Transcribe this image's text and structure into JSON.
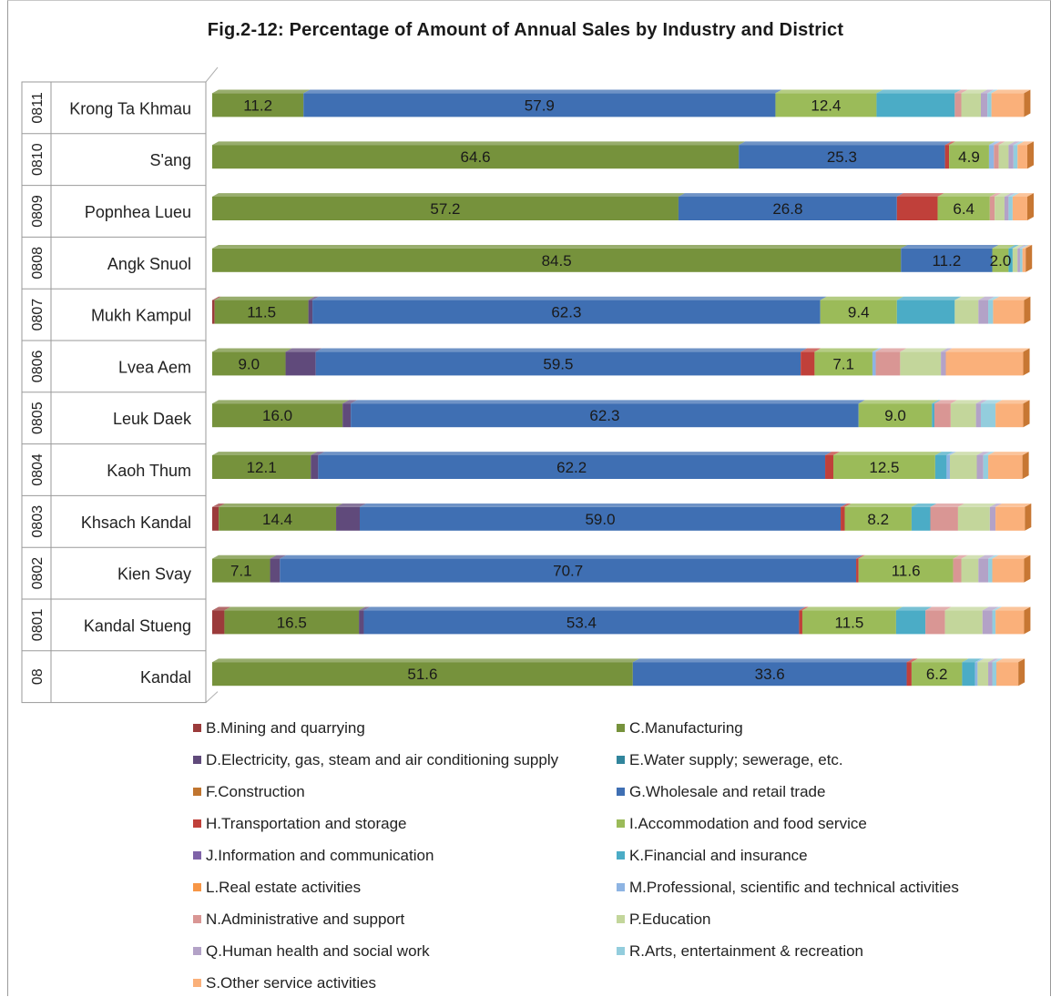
{
  "chart_data": {
    "type": "bar",
    "orientation": "horizontal",
    "stacked": true,
    "title": "Fig.2-12: Percentage of Amount of Annual Sales by Industry and District",
    "xlim": [
      0,
      100
    ],
    "legend_position": "bottom",
    "categories": [
      {
        "code": "0811",
        "name": "Krong Ta Khmau"
      },
      {
        "code": "0810",
        "name": "S'ang"
      },
      {
        "code": "0809",
        "name": "Popnhea Lueu"
      },
      {
        "code": "0808",
        "name": "Angk Snuol"
      },
      {
        "code": "0807",
        "name": "Mukh Kampul"
      },
      {
        "code": "0806",
        "name": "Lvea Aem"
      },
      {
        "code": "0805",
        "name": "Leuk Daek"
      },
      {
        "code": "0804",
        "name": "Kaoh Thum"
      },
      {
        "code": "0803",
        "name": "Khsach Kandal"
      },
      {
        "code": "0802",
        "name": "Kien Svay"
      },
      {
        "code": "0801",
        "name": "Kandal Stueng"
      },
      {
        "code": "08",
        "name": "Kandal"
      }
    ],
    "label_series": [
      "C.Manufacturing",
      "G.Wholesale and retail trade",
      "I.Accommodation and food service"
    ],
    "series": [
      {
        "name": "B.Mining and quarrying",
        "color": "#9b3b3b",
        "values": [
          0,
          0,
          0,
          0,
          0.3,
          0,
          0,
          0,
          0.8,
          0,
          1.5,
          0
        ]
      },
      {
        "name": "C.Manufacturing",
        "color": "#76923c",
        "values": [
          11.2,
          64.6,
          57.2,
          84.5,
          11.5,
          9.0,
          16.0,
          12.1,
          14.4,
          7.1,
          16.5,
          51.6
        ]
      },
      {
        "name": "D.Electricity, gas, steam and air conditioning supply",
        "color": "#604a7b",
        "values": [
          0,
          0,
          0,
          0,
          0.5,
          3.7,
          1.0,
          0.9,
          2.9,
          1.2,
          0.6,
          0
        ]
      },
      {
        "name": "E.Water supply; sewerage, etc.",
        "color": "#31859c",
        "values": [
          0,
          0,
          0,
          0,
          0,
          0,
          0,
          0,
          0,
          0,
          0,
          0
        ]
      },
      {
        "name": "F.Construction",
        "color": "#c0752f",
        "values": [
          0,
          0,
          0,
          0,
          0,
          0,
          0,
          0,
          0,
          0,
          0,
          0
        ]
      },
      {
        "name": "G.Wholesale and retail trade",
        "color": "#3f6fb3",
        "values": [
          57.9,
          25.3,
          26.8,
          11.2,
          62.3,
          59.5,
          62.3,
          62.2,
          59.0,
          70.7,
          53.4,
          33.6
        ]
      },
      {
        "name": "H.Transportation and storage",
        "color": "#c0403a",
        "values": [
          0,
          0.5,
          5.0,
          0,
          0,
          1.7,
          0,
          1.0,
          0.5,
          0.3,
          0.4,
          0.6
        ]
      },
      {
        "name": "I.Accommodation and food service",
        "color": "#9bbb59",
        "values": [
          12.4,
          4.9,
          6.4,
          2.0,
          9.4,
          7.1,
          9.0,
          12.5,
          8.2,
          11.6,
          11.5,
          6.2
        ]
      },
      {
        "name": "J.Information and communication",
        "color": "#7f63a8",
        "values": [
          0,
          0,
          0,
          0,
          0,
          0,
          0,
          0,
          0,
          0,
          0,
          0
        ]
      },
      {
        "name": "K.Financial and insurance",
        "color": "#4bacc6",
        "values": [
          9.6,
          0,
          0,
          0.5,
          7.1,
          0,
          0.3,
          1.4,
          2.3,
          0,
          3.6,
          1.6
        ]
      },
      {
        "name": "L.Real estate activities",
        "color": "#f79646",
        "values": [
          0,
          0,
          0,
          0,
          0,
          0,
          0,
          0,
          0,
          0,
          0,
          0
        ]
      },
      {
        "name": "M.Professional, scientific and technical activities",
        "color": "#8eb4e3",
        "values": [
          0,
          0.6,
          0,
          0,
          0,
          0.4,
          0,
          0.4,
          0,
          0,
          0,
          0.3
        ]
      },
      {
        "name": "N.Administrative and support",
        "color": "#d99694",
        "values": [
          0.8,
          0.6,
          0.6,
          0,
          0,
          3.0,
          2.0,
          0,
          3.4,
          1.0,
          2.4,
          0
        ]
      },
      {
        "name": "P.Education",
        "color": "#c3d69b",
        "values": [
          2.4,
          1.2,
          1.2,
          0.6,
          2.9,
          5.0,
          3.1,
          3.3,
          3.9,
          2.1,
          4.6,
          1.3
        ]
      },
      {
        "name": "Q.Human health and social work",
        "color": "#b3a2c7",
        "values": [
          0.8,
          0.6,
          0.5,
          0.3,
          1.2,
          0.6,
          0.6,
          0.8,
          0.7,
          1.2,
          1.2,
          0.5
        ]
      },
      {
        "name": "R.Arts, entertainment & recreation",
        "color": "#93cddd",
        "values": [
          0.5,
          0.5,
          0.5,
          0.3,
          0.6,
          0,
          1.8,
          0.6,
          0,
          0.5,
          0.4,
          0.5
        ]
      },
      {
        "name": "S.Other service activities",
        "color": "#fab07a",
        "values": [
          4.0,
          1.2,
          1.8,
          0.4,
          3.8,
          9.5,
          3.4,
          4.2,
          3.6,
          3.9,
          3.5,
          2.7
        ]
      }
    ]
  }
}
